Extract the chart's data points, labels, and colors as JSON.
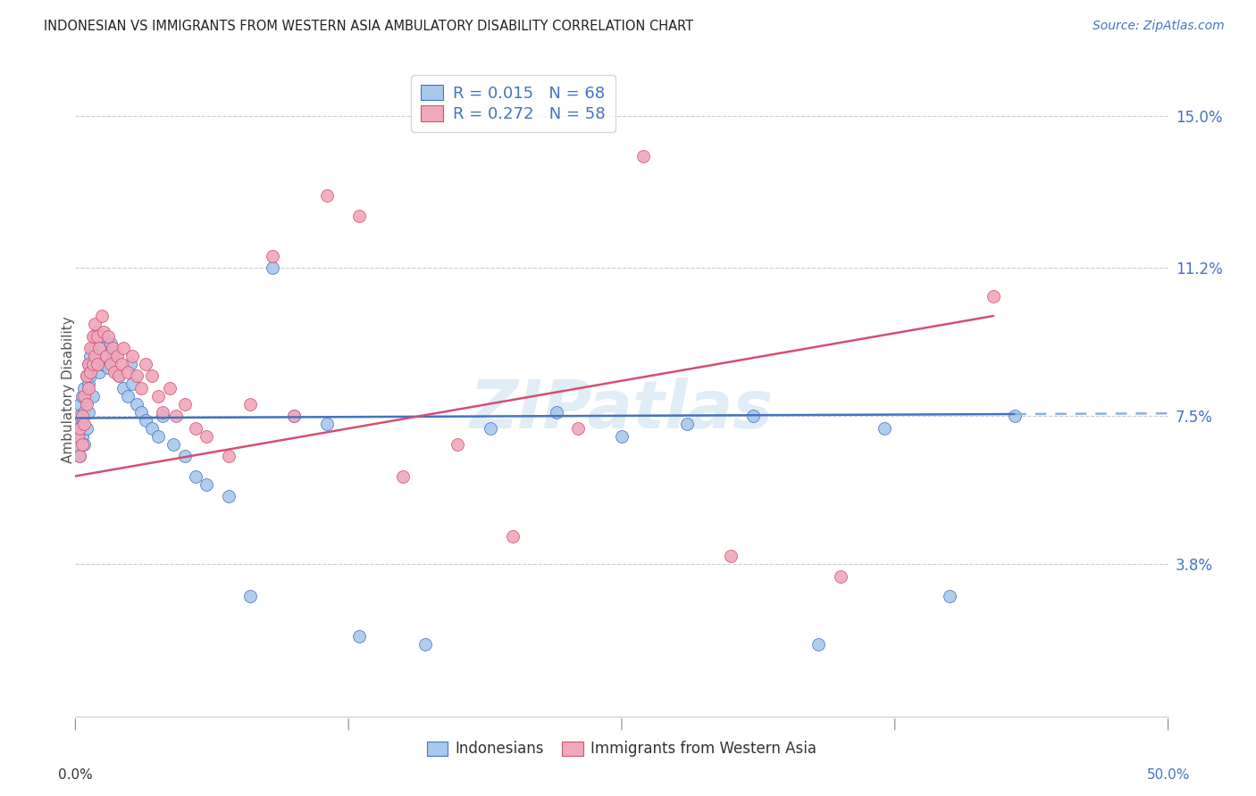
{
  "title": "INDONESIAN VS IMMIGRANTS FROM WESTERN ASIA AMBULATORY DISABILITY CORRELATION CHART",
  "source": "Source: ZipAtlas.com",
  "ylabel": "Ambulatory Disability",
  "ytick_labels": [
    "3.8%",
    "7.5%",
    "11.2%",
    "15.0%"
  ],
  "ytick_values": [
    0.038,
    0.075,
    0.112,
    0.15
  ],
  "xlim": [
    0.0,
    0.5
  ],
  "ylim": [
    0.0,
    0.163
  ],
  "legend_label1": "Indonesians",
  "legend_label2": "Immigrants from Western Asia",
  "color_blue": "#A8C8EC",
  "color_pink": "#F0A8BC",
  "color_blue_line": "#4472C4",
  "color_pink_line": "#D45070",
  "color_dashed": "#90B0D0",
  "watermark": "ZIPatlas",
  "r_blue_text": "R = 0.015",
  "n_blue_text": "N = 68",
  "r_pink_text": "R = 0.272",
  "n_pink_text": "N = 58",
  "indo_x": [
    0.001,
    0.001,
    0.002,
    0.002,
    0.002,
    0.003,
    0.003,
    0.003,
    0.004,
    0.004,
    0.004,
    0.005,
    0.005,
    0.005,
    0.006,
    0.006,
    0.006,
    0.007,
    0.007,
    0.008,
    0.008,
    0.008,
    0.009,
    0.009,
    0.01,
    0.01,
    0.011,
    0.011,
    0.012,
    0.012,
    0.013,
    0.014,
    0.015,
    0.016,
    0.017,
    0.018,
    0.019,
    0.02,
    0.022,
    0.024,
    0.025,
    0.026,
    0.028,
    0.03,
    0.032,
    0.035,
    0.038,
    0.04,
    0.045,
    0.05,
    0.055,
    0.06,
    0.07,
    0.08,
    0.09,
    0.1,
    0.115,
    0.13,
    0.16,
    0.19,
    0.22,
    0.25,
    0.28,
    0.31,
    0.34,
    0.37,
    0.4,
    0.43
  ],
  "indo_y": [
    0.072,
    0.068,
    0.075,
    0.078,
    0.065,
    0.08,
    0.073,
    0.07,
    0.082,
    0.076,
    0.068,
    0.085,
    0.079,
    0.072,
    0.088,
    0.083,
    0.076,
    0.09,
    0.085,
    0.092,
    0.087,
    0.08,
    0.095,
    0.088,
    0.096,
    0.09,
    0.093,
    0.086,
    0.095,
    0.088,
    0.092,
    0.09,
    0.087,
    0.093,
    0.089,
    0.091,
    0.086,
    0.085,
    0.082,
    0.08,
    0.088,
    0.083,
    0.078,
    0.076,
    0.074,
    0.072,
    0.07,
    0.075,
    0.068,
    0.065,
    0.06,
    0.058,
    0.055,
    0.03,
    0.112,
    0.075,
    0.073,
    0.02,
    0.018,
    0.072,
    0.076,
    0.07,
    0.073,
    0.075,
    0.018,
    0.072,
    0.03,
    0.075
  ],
  "wa_x": [
    0.001,
    0.002,
    0.002,
    0.003,
    0.003,
    0.004,
    0.004,
    0.005,
    0.005,
    0.006,
    0.006,
    0.007,
    0.007,
    0.008,
    0.008,
    0.009,
    0.009,
    0.01,
    0.01,
    0.011,
    0.012,
    0.013,
    0.014,
    0.015,
    0.016,
    0.017,
    0.018,
    0.019,
    0.02,
    0.021,
    0.022,
    0.024,
    0.026,
    0.028,
    0.03,
    0.032,
    0.035,
    0.038,
    0.04,
    0.043,
    0.046,
    0.05,
    0.055,
    0.06,
    0.07,
    0.08,
    0.09,
    0.1,
    0.115,
    0.13,
    0.15,
    0.175,
    0.2,
    0.23,
    0.26,
    0.3,
    0.35,
    0.42
  ],
  "wa_y": [
    0.07,
    0.072,
    0.065,
    0.075,
    0.068,
    0.08,
    0.073,
    0.085,
    0.078,
    0.088,
    0.082,
    0.092,
    0.086,
    0.095,
    0.088,
    0.098,
    0.09,
    0.095,
    0.088,
    0.092,
    0.1,
    0.096,
    0.09,
    0.095,
    0.088,
    0.092,
    0.086,
    0.09,
    0.085,
    0.088,
    0.092,
    0.086,
    0.09,
    0.085,
    0.082,
    0.088,
    0.085,
    0.08,
    0.076,
    0.082,
    0.075,
    0.078,
    0.072,
    0.07,
    0.065,
    0.078,
    0.115,
    0.075,
    0.13,
    0.125,
    0.06,
    0.068,
    0.045,
    0.072,
    0.14,
    0.04,
    0.035,
    0.105
  ],
  "blue_line_x0": 0.0,
  "blue_line_x1": 0.43,
  "blue_line_y0": 0.0745,
  "blue_line_y1": 0.0755,
  "pink_line_x0": 0.0,
  "pink_line_x1": 0.42,
  "pink_line_y0": 0.06,
  "pink_line_y1": 0.1
}
